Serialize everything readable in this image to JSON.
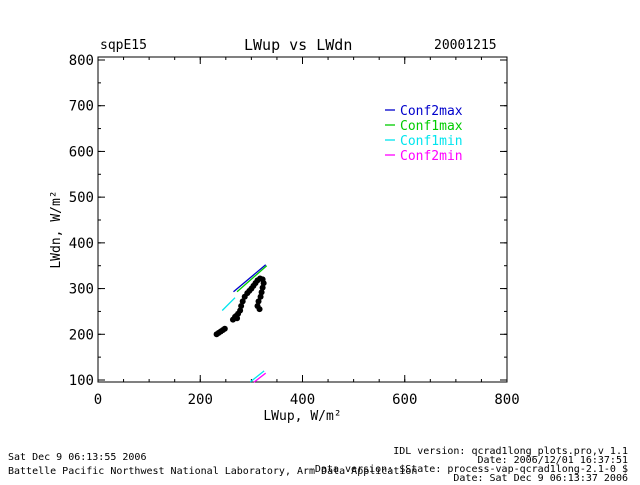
{
  "header": {
    "site": "sqpE15",
    "date": "20001215"
  },
  "footer": {
    "left_line1": "Sat Dec  9 06:13:55 2006",
    "left_line2": "Battelle Pacific Northwest National Laboratory, Arm Data Application",
    "right_line1": "IDL version: qcrad1long_plots.pro,v 1.1",
    "right_line2": "Date: 2006/12/01 16:37:51",
    "right_line3": "Data version: $State: process-vap-qcrad1long-2.1-0 $",
    "right_line4": "Date: Sat Dec  9 06:13:37 2006"
  },
  "chart_data": {
    "type": "scatter",
    "title": "LWup vs LWdn",
    "xlabel": "LWup, W/m²",
    "ylabel": "LWdn, W/m²",
    "xlim": [
      0,
      800
    ],
    "ylim": [
      95,
      805
    ],
    "xticks": [
      "0",
      "200",
      "400",
      "600",
      "800"
    ],
    "yticks": [
      "100",
      "200",
      "300",
      "400",
      "500",
      "600",
      "700",
      "800"
    ],
    "legend_position": "top-right",
    "series": [
      {
        "name": "Conf2max",
        "color": "#0000cc",
        "kind": "line",
        "points": [
          [
            265,
            293
          ],
          [
            328,
            352
          ]
        ]
      },
      {
        "name": "Conf1max",
        "color": "#00cc00",
        "kind": "line",
        "points": [
          [
            272,
            293
          ],
          [
            330,
            350
          ]
        ]
      },
      {
        "name": "Conf1min",
        "color": "#00e5ee",
        "kind": "line",
        "points": [
          [
            243,
            252
          ],
          [
            268,
            280
          ],
          [
            298,
            96
          ],
          [
            325,
            120
          ]
        ]
      },
      {
        "name": "Conf2min",
        "color": "#ff00ff",
        "kind": "line",
        "points": [
          [
            305,
            95
          ],
          [
            328,
            115
          ]
        ]
      },
      {
        "name": "",
        "color": "#000000",
        "kind": "points",
        "points": [
          [
            232,
            200
          ],
          [
            236,
            203
          ],
          [
            240,
            206
          ],
          [
            244,
            209
          ],
          [
            248,
            212
          ],
          [
            272,
            235
          ],
          [
            270,
            240
          ],
          [
            274,
            245
          ],
          [
            278,
            252
          ],
          [
            280,
            262
          ],
          [
            283,
            272
          ],
          [
            287,
            282
          ],
          [
            292,
            290
          ],
          [
            296,
            295
          ],
          [
            300,
            300
          ],
          [
            304,
            306
          ],
          [
            308,
            312
          ],
          [
            312,
            318
          ],
          [
            317,
            322
          ],
          [
            322,
            320
          ],
          [
            324,
            312
          ],
          [
            322,
            302
          ],
          [
            320,
            292
          ],
          [
            318,
            282
          ],
          [
            314,
            272
          ],
          [
            312,
            262
          ],
          [
            316,
            255
          ],
          [
            268,
            238
          ],
          [
            264,
            232
          ]
        ]
      }
    ]
  }
}
